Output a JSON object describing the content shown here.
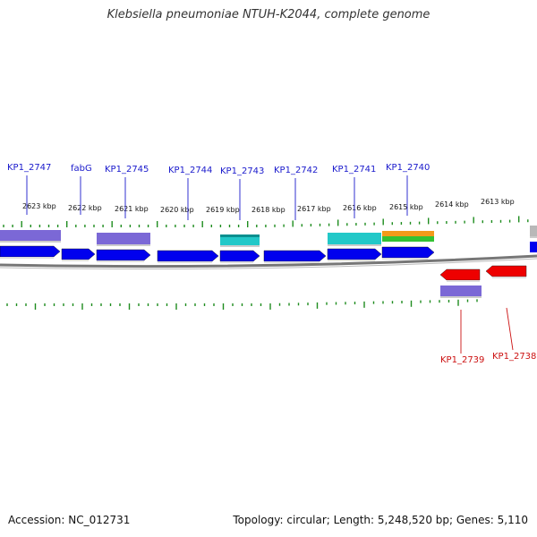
{
  "title": "Klebsiella pneumoniae NTUH-K2044, complete genome",
  "footer": {
    "accession": "Accession: NC_012731",
    "summary": "Topology: circular; Length: 5,248,520 bp; Genes: 5,110"
  },
  "colors": {
    "forward_label": "#1a1acc",
    "reverse_label": "#cc1111",
    "forward_gene": "#0000ee",
    "reverse_gene": "#ee0000",
    "backbone": "#777777",
    "tick": "#1e8c1e",
    "purple_feature": "#7b68d6",
    "cyan_feature": "#22c8c8"
  },
  "kbp_labels": [
    "2623 kbp",
    "2622 kbp",
    "2621 kbp",
    "2620 kbp",
    "2619 kbp",
    "2618 kbp",
    "2617 kbp",
    "2616 kbp",
    "2615 kbp",
    "2614 kbp",
    "2613 kbp"
  ],
  "forward_gene_labels": [
    "KP1_2747",
    "fabG",
    "KP1_2745",
    "KP1_2744",
    "KP1_2743",
    "KP1_2742",
    "KP1_2741",
    "KP1_2740"
  ],
  "reverse_gene_labels": [
    "KP1_2739",
    "KP1_2738"
  ]
}
